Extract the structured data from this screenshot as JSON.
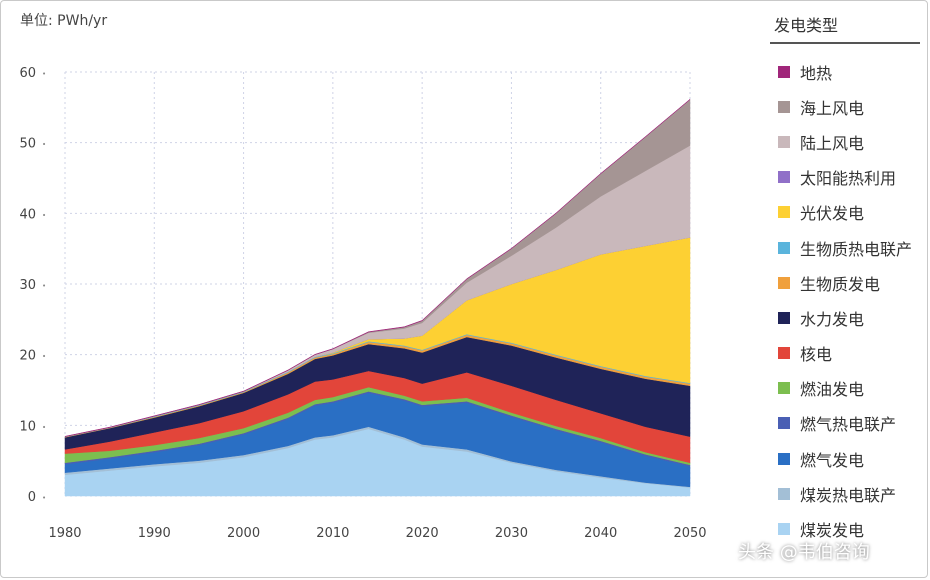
{
  "chart_data": {
    "type": "area",
    "stacked": true,
    "ylabel": "单位: PWh/yr",
    "ylim": [
      0,
      60
    ],
    "yticks": [
      0,
      10,
      20,
      30,
      40,
      50,
      60
    ],
    "xlim": [
      1980,
      2050
    ],
    "xticks": [
      1980,
      1990,
      2000,
      2010,
      2020,
      2030,
      2040,
      2050
    ],
    "grid": "dotted vertical and horizontal",
    "legend_title": "发电类型",
    "legend_position": "right",
    "x": [
      1980,
      1985,
      1990,
      1995,
      2000,
      2005,
      2008,
      2010,
      2014,
      2018,
      2020,
      2025,
      2030,
      2035,
      2040,
      2045,
      2050
    ],
    "series": [
      {
        "name": "煤炭发电",
        "color": "#a9d3f2",
        "values": [
          3.0,
          3.6,
          4.2,
          4.7,
          5.5,
          6.8,
          8.0,
          8.3,
          9.5,
          8.0,
          7.0,
          6.3,
          4.7,
          3.5,
          2.6,
          1.8,
          1.2
        ]
      },
      {
        "name": "煤炭热电联产",
        "color": "#a3bfd6",
        "values": [
          0.3,
          0.3,
          0.3,
          0.3,
          0.3,
          0.3,
          0.3,
          0.3,
          0.3,
          0.3,
          0.3,
          0.3,
          0.2,
          0.2,
          0.2,
          0.1,
          0.1
        ]
      },
      {
        "name": "燃气发电",
        "color": "#2a6fc4",
        "values": [
          1.2,
          1.4,
          1.7,
          2.2,
          2.9,
          3.8,
          4.5,
          4.6,
          4.8,
          5.2,
          5.4,
          6.6,
          6.3,
          5.6,
          4.8,
          3.8,
          2.9
        ]
      },
      {
        "name": "燃气热电联产",
        "color": "#4a5fb4",
        "values": [
          0.2,
          0.2,
          0.2,
          0.2,
          0.2,
          0.2,
          0.2,
          0.2,
          0.2,
          0.2,
          0.2,
          0.2,
          0.2,
          0.2,
          0.2,
          0.2,
          0.2
        ]
      },
      {
        "name": "燃油发电",
        "color": "#7cbe4f",
        "values": [
          1.3,
          0.9,
          0.8,
          0.8,
          0.7,
          0.7,
          0.6,
          0.6,
          0.6,
          0.5,
          0.5,
          0.5,
          0.4,
          0.4,
          0.4,
          0.3,
          0.3
        ]
      },
      {
        "name": "核电",
        "color": "#e2453a",
        "values": [
          0.6,
          1.3,
          1.8,
          2.1,
          2.4,
          2.6,
          2.6,
          2.5,
          2.3,
          2.5,
          2.5,
          3.6,
          3.8,
          3.7,
          3.5,
          3.6,
          3.7
        ]
      },
      {
        "name": "水力发电",
        "color": "#1f2358",
        "values": [
          1.7,
          1.9,
          2.1,
          2.4,
          2.6,
          2.9,
          3.2,
          3.4,
          3.8,
          4.2,
          4.4,
          5.0,
          5.7,
          6.0,
          6.3,
          6.8,
          7.2
        ]
      },
      {
        "name": "生物质发电",
        "color": "#f0a03c",
        "values": [
          0.05,
          0.05,
          0.1,
          0.1,
          0.1,
          0.2,
          0.2,
          0.2,
          0.3,
          0.3,
          0.3,
          0.3,
          0.3,
          0.3,
          0.3,
          0.3,
          0.3
        ]
      },
      {
        "name": "生物质热电联产",
        "color": "#5ab4dc",
        "values": [
          0.05,
          0.05,
          0.1,
          0.1,
          0.1,
          0.1,
          0.1,
          0.1,
          0.1,
          0.1,
          0.1,
          0.1,
          0.1,
          0.1,
          0.1,
          0.1,
          0.1
        ]
      },
      {
        "name": "光伏发电",
        "color": "#fdd033",
        "values": [
          0,
          0,
          0,
          0,
          0,
          0,
          0,
          0.1,
          0.3,
          1.0,
          2.0,
          4.8,
          8.3,
          12.0,
          15.8,
          18.4,
          20.6
        ]
      },
      {
        "name": "太阳能热利用",
        "color": "#9070c8",
        "values": [
          0,
          0,
          0,
          0,
          0,
          0,
          0,
          0,
          0,
          0,
          0,
          0,
          0,
          0,
          0,
          0,
          0
        ]
      },
      {
        "name": "陆上风电",
        "color": "#c9b8bb",
        "values": [
          0,
          0,
          0,
          0,
          0,
          0.2,
          0.3,
          0.5,
          0.9,
          1.4,
          1.8,
          2.5,
          4.0,
          6.0,
          8.2,
          10.6,
          13.0
        ]
      },
      {
        "name": "海上风电",
        "color": "#a59594",
        "values": [
          0,
          0,
          0,
          0,
          0,
          0,
          0,
          0,
          0.1,
          0.2,
          0.3,
          0.5,
          1.0,
          2.0,
          3.2,
          4.8,
          6.5
        ]
      },
      {
        "name": "地热",
        "color": "#a0267a",
        "values": [
          0.05,
          0.05,
          0.05,
          0.05,
          0.05,
          0.05,
          0.05,
          0.05,
          0.05,
          0.05,
          0.05,
          0.05,
          0.05,
          0.05,
          0.05,
          0.05,
          0.05
        ]
      }
    ],
    "legend_order": [
      "地热",
      "海上风电",
      "陆上风电",
      "太阳能热利用",
      "光伏发电",
      "生物质热电联产",
      "生物质发电",
      "水力发电",
      "核电",
      "燃油发电",
      "燃气热电联产",
      "燃气发电",
      "煤炭热电联产",
      "煤炭发电"
    ]
  },
  "watermark": "头条 @韦伯咨询"
}
